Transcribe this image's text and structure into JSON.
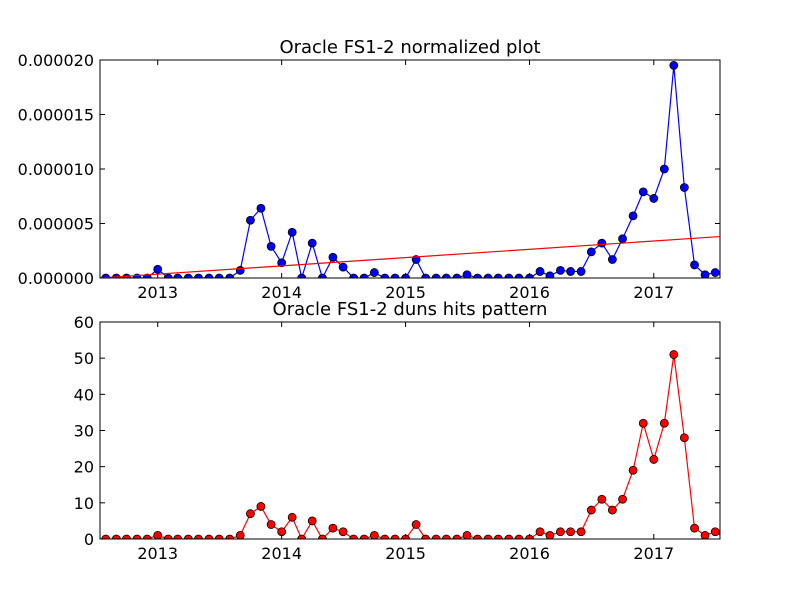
{
  "chart_data": [
    {
      "type": "line",
      "title": "Oracle FS1-2 normalized plot",
      "xlabel": "",
      "ylabel": "",
      "xlim": [
        "2012-07-15",
        "2017-07-15"
      ],
      "ylim": [
        0,
        2e-05
      ],
      "yticks": [
        0,
        5e-06,
        1e-05,
        1.5e-05,
        2e-05
      ],
      "ytick_labels": [
        "0.000000",
        "0.000005",
        "0.000010",
        "0.000015",
        "0.000020"
      ],
      "xtick_labels": [
        "2013",
        "2014",
        "2015",
        "2016",
        "2017"
      ],
      "grid": false,
      "series": [
        {
          "color": "#0000ff",
          "marker": "circle",
          "x": [
            "2012-07",
            "2012-08",
            "2012-09",
            "2012-10",
            "2012-11",
            "2012-12",
            "2013-01",
            "2013-02",
            "2013-03",
            "2013-04",
            "2013-05",
            "2013-06",
            "2013-07",
            "2013-08",
            "2013-09",
            "2013-10",
            "2013-11",
            "2013-12",
            "2014-01",
            "2014-02",
            "2014-03",
            "2014-04",
            "2014-05",
            "2014-06",
            "2014-07",
            "2014-08",
            "2014-09",
            "2014-10",
            "2014-11",
            "2014-12",
            "2015-01",
            "2015-02",
            "2015-03",
            "2015-04",
            "2015-05",
            "2015-06",
            "2015-07",
            "2015-08",
            "2015-09",
            "2015-10",
            "2015-11",
            "2015-12",
            "2016-01",
            "2016-02",
            "2016-03",
            "2016-04",
            "2016-05",
            "2016-06",
            "2016-07",
            "2016-08",
            "2016-09",
            "2016-10",
            "2016-11",
            "2016-12",
            "2017-01",
            "2017-02",
            "2017-03",
            "2017-04",
            "2017-05",
            "2017-06",
            "2017-07",
            "2017-08"
          ],
          "y": [
            0,
            0,
            0,
            0,
            0,
            0,
            8e-07,
            0,
            0,
            0,
            0,
            0,
            0,
            0,
            7e-07,
            5.3e-06,
            6.4e-06,
            2.9e-06,
            1.4e-06,
            4.2e-06,
            0,
            3.2e-06,
            0,
            1.9e-06,
            1e-06,
            0,
            0,
            5e-07,
            0,
            0,
            0,
            1.7e-06,
            0,
            0,
            0,
            0,
            3e-07,
            0,
            0,
            0,
            0,
            0,
            0,
            6e-07,
            2e-07,
            7e-07,
            6e-07,
            6e-07,
            2.4e-06,
            3.2e-06,
            1.7e-06,
            3.6e-06,
            5.7e-06,
            7.9e-06,
            7.3e-06,
            1e-05,
            1.95e-05,
            8.3e-06,
            1.2e-06,
            3e-07,
            5e-07,
            0
          ]
        },
        {
          "color": "#ff0000",
          "marker": "none",
          "x": [
            "2012-07-15",
            "2017-07-15"
          ],
          "y": [
            0,
            3.8e-06
          ]
        }
      ]
    },
    {
      "type": "line",
      "title": "Oracle FS1-2 duns hits pattern",
      "xlabel": "",
      "ylabel": "",
      "xlim": [
        "2012-07-15",
        "2017-07-15"
      ],
      "ylim": [
        0,
        60
      ],
      "yticks": [
        0,
        10,
        20,
        30,
        40,
        50,
        60
      ],
      "ytick_labels": [
        "0",
        "10",
        "20",
        "30",
        "40",
        "50",
        "60"
      ],
      "xtick_labels": [
        "2013",
        "2014",
        "2015",
        "2016",
        "2017"
      ],
      "grid": false,
      "series": [
        {
          "color": "#ff0000",
          "marker": "circle",
          "x": [
            "2012-07",
            "2012-08",
            "2012-09",
            "2012-10",
            "2012-11",
            "2012-12",
            "2013-01",
            "2013-02",
            "2013-03",
            "2013-04",
            "2013-05",
            "2013-06",
            "2013-07",
            "2013-08",
            "2013-09",
            "2013-10",
            "2013-11",
            "2013-12",
            "2014-01",
            "2014-02",
            "2014-03",
            "2014-04",
            "2014-05",
            "2014-06",
            "2014-07",
            "2014-08",
            "2014-09",
            "2014-10",
            "2014-11",
            "2014-12",
            "2015-01",
            "2015-02",
            "2015-03",
            "2015-04",
            "2015-05",
            "2015-06",
            "2015-07",
            "2015-08",
            "2015-09",
            "2015-10",
            "2015-11",
            "2015-12",
            "2016-01",
            "2016-02",
            "2016-03",
            "2016-04",
            "2016-05",
            "2016-06",
            "2016-07",
            "2016-08",
            "2016-09",
            "2016-10",
            "2016-11",
            "2016-12",
            "2017-01",
            "2017-02",
            "2017-03",
            "2017-04",
            "2017-05",
            "2017-06",
            "2017-07",
            "2017-08"
          ],
          "y": [
            0,
            0,
            0,
            0,
            0,
            0,
            1,
            0,
            0,
            0,
            0,
            0,
            0,
            0,
            1,
            7,
            9,
            4,
            2,
            6,
            0,
            5,
            0,
            3,
            2,
            0,
            0,
            1,
            0,
            0,
            0,
            4,
            0,
            0,
            0,
            0,
            1,
            0,
            0,
            0,
            0,
            0,
            0,
            2,
            1,
            2,
            2,
            2,
            8,
            11,
            8,
            11,
            19,
            32,
            22,
            32,
            51,
            28,
            3,
            1,
            2,
            0
          ]
        }
      ]
    }
  ]
}
